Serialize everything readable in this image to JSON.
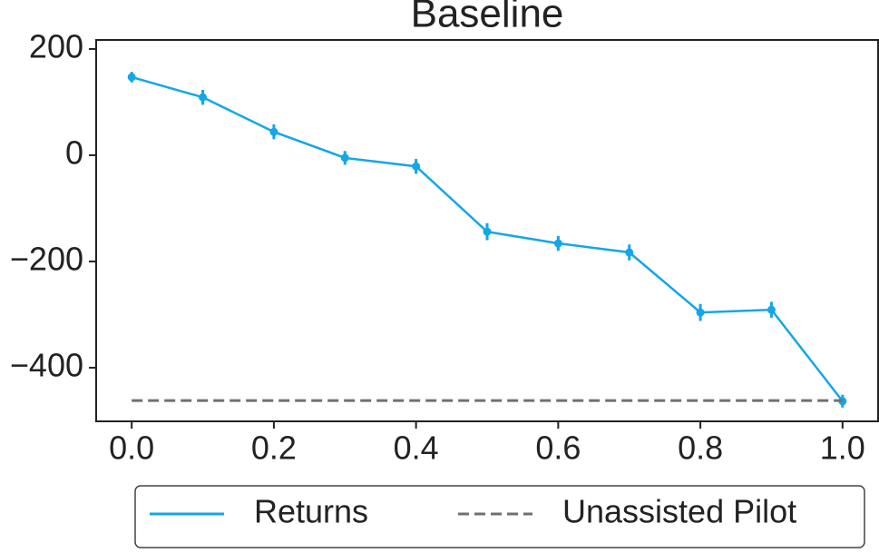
{
  "chart_data": {
    "type": "line",
    "title": "Baseline",
    "xlim": [
      -0.05,
      1.05
    ],
    "ylim": [
      -501,
      217
    ],
    "xticks": [
      {
        "value": 0,
        "label": "0.0"
      },
      0.2,
      0.4,
      0.6,
      0.8,
      {
        "value": 1,
        "label": "1.0"
      }
    ],
    "yticks": [
      {
        "value": -400,
        "label": "−400"
      },
      {
        "value": -200,
        "label": "−200"
      },
      0,
      200
    ],
    "series": [
      {
        "name": "Returns",
        "color": "#14a6e8",
        "style": "solid",
        "x": [
          0,
          0.1,
          0.2,
          0.3,
          0.4,
          0.5,
          0.6,
          0.7,
          0.8,
          0.9,
          1
        ],
        "values": [
          147,
          109,
          44,
          -5,
          -21,
          -144,
          -166,
          -183,
          -296,
          -291,
          -463
        ],
        "errors": [
          10,
          14,
          14,
          13,
          14,
          16,
          14,
          15,
          16,
          15,
          12
        ]
      },
      {
        "name": "Unassisted Pilot",
        "color": "#707070",
        "style": "dashed",
        "x": [
          0,
          1
        ],
        "values": [
          -462,
          -462
        ]
      }
    ],
    "legend": "bottom"
  }
}
